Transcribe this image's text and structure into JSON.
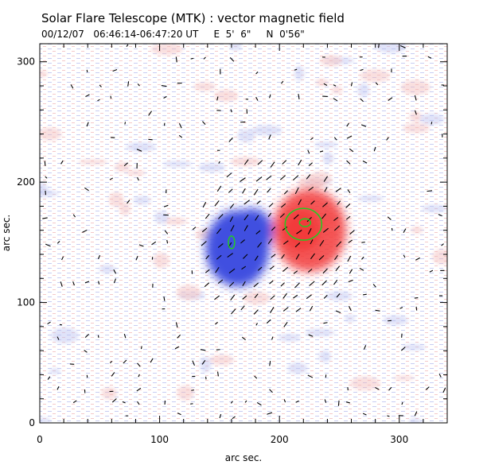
{
  "title": "Solar Flare Telescope (MTK) : vector magnetic field",
  "subtitle": "00/12/07   06:46:14-06:47:20 UT     E  5'  6\"     N  0'56\"",
  "colors": {
    "negative_polarity": "#3f4fe0",
    "positive_polarity": "#f23a3a",
    "contour": "#22cc22",
    "vectors": "#000000"
  },
  "chart_data": {
    "type": "heatmap",
    "title": "Solar Flare Telescope (MTK) : vector magnetic field",
    "xlabel": "arc sec.",
    "ylabel": "arc sec.",
    "xlim": [
      0,
      340
    ],
    "ylim": [
      0,
      315
    ],
    "xticks": [
      0,
      100,
      200,
      300
    ],
    "yticks": [
      0,
      100,
      200,
      300
    ],
    "colormap": "blue = negative polarity, red = positive polarity",
    "features": [
      {
        "type": "negative-blob",
        "x": 165,
        "y": 145
      },
      {
        "type": "positive-blob",
        "x": 225,
        "y": 160
      },
      {
        "type": "contour",
        "x": 160,
        "y": 150
      },
      {
        "type": "contour",
        "x": 220,
        "y": 165
      }
    ]
  }
}
